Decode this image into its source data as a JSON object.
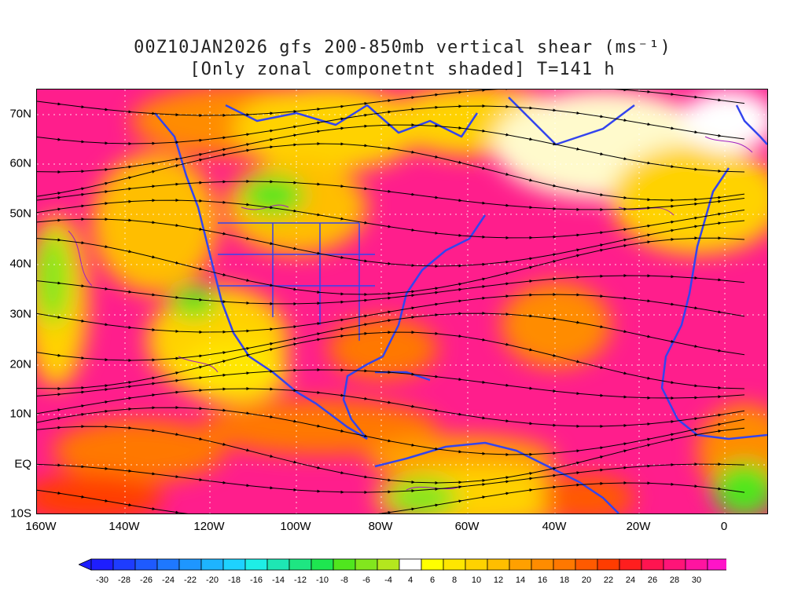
{
  "title": {
    "line1": "00Z10JAN2026 gfs 200-850mb vertical shear (ms⁻¹)",
    "line2": "[Only zonal componetnt shaded] T=141 h"
  },
  "map": {
    "variable": "200-850mb vertical shear, zonal component shaded",
    "overlay": "shear streamlines",
    "coastline_color": "#3344ee",
    "contour_color": "#a020c0",
    "lat_labels": [
      "70N",
      "60N",
      "50N",
      "40N",
      "30N",
      "20N",
      "10N",
      "EQ",
      "10S"
    ],
    "lon_labels": [
      "160W",
      "140W",
      "120W",
      "100W",
      "80W",
      "60W",
      "40W",
      "20W",
      "0"
    ]
  },
  "colorbar": {
    "labels": [
      "-30",
      "-28",
      "-26",
      "-24",
      "-22",
      "-20",
      "-18",
      "-16",
      "-14",
      "-12",
      "-10",
      "-8",
      "-6",
      "-4",
      "4",
      "6",
      "8",
      "10",
      "12",
      "14",
      "16",
      "18",
      "20",
      "22",
      "24",
      "26",
      "28",
      "30"
    ],
    "colors": [
      "#1e1eff",
      "#1e3cff",
      "#1e5aff",
      "#1e78ff",
      "#1e96ff",
      "#1eb4ff",
      "#1ed2ff",
      "#1eeee6",
      "#1ee6b4",
      "#1ee682",
      "#1ee650",
      "#50e61e",
      "#82e61e",
      "#b4e61e",
      "#ffffff",
      "#ffff00",
      "#ffe600",
      "#ffd200",
      "#ffbe00",
      "#ffa000",
      "#ff8c00",
      "#ff7800",
      "#ff5a00",
      "#ff3c00",
      "#ff1e1e",
      "#ff1450",
      "#ff1478",
      "#ff14a0",
      "#ff14c8"
    ],
    "end_low_color": "#1e1eff",
    "end_high_color": "#ff14c8"
  }
}
